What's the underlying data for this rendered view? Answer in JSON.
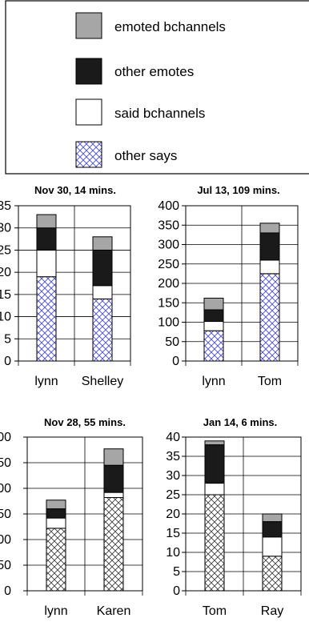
{
  "legend": {
    "entries": [
      {
        "label": "emoted bchannels",
        "color": "#a6a6a6",
        "pattern": "solid"
      },
      {
        "label": "other emotes",
        "color": "#1a1a1a",
        "pattern": "solid"
      },
      {
        "label": "said bchannels",
        "color": "#ffffff",
        "pattern": "solid"
      },
      {
        "label": "other says",
        "color": "#4a4ad8",
        "pattern": "crosshatch"
      }
    ]
  },
  "chart_data": [
    {
      "type": "bar",
      "stacked": true,
      "title": "Nov 30, 14 mins.",
      "categories": [
        "lynn",
        "Shelley"
      ],
      "yticks": [
        "35",
        "30",
        "25",
        "20",
        "15",
        "10",
        "5",
        "0"
      ],
      "ylim": [
        0,
        35
      ],
      "hatch_color": "#4a4ad8",
      "series": [
        {
          "name": "other says",
          "values": [
            19,
            14
          ]
        },
        {
          "name": "said bchannels",
          "values": [
            6,
            3
          ]
        },
        {
          "name": "other emotes",
          "values": [
            5,
            8
          ]
        },
        {
          "name": "emoted bchannels",
          "values": [
            3,
            3
          ]
        }
      ]
    },
    {
      "type": "bar",
      "stacked": true,
      "title": "Jul 13, 109 mins.",
      "categories": [
        "lynn",
        "Tom"
      ],
      "yticks": [
        "400",
        "350",
        "300",
        "250",
        "200",
        "150",
        "100",
        "50",
        "0"
      ],
      "ylim": [
        0,
        400
      ],
      "hatch_color": "#4a4ad8",
      "series": [
        {
          "name": "other says",
          "values": [
            78,
            225
          ]
        },
        {
          "name": "said bchannels",
          "values": [
            24,
            35
          ]
        },
        {
          "name": "other emotes",
          "values": [
            30,
            70
          ]
        },
        {
          "name": "emoted bchannels",
          "values": [
            30,
            25
          ]
        }
      ]
    },
    {
      "type": "bar",
      "stacked": true,
      "title": "Nov 28, 55 mins.",
      "categories": [
        "lynn",
        "Karen"
      ],
      "yticks": [
        "00",
        "50",
        "00",
        "50",
        "00",
        "50",
        "0"
      ],
      "ylim": [
        0,
        300
      ],
      "hatch_color": "#404040",
      "series": [
        {
          "name": "other says",
          "values": [
            122,
            182
          ]
        },
        {
          "name": "said bchannels",
          "values": [
            20,
            10
          ]
        },
        {
          "name": "other emotes",
          "values": [
            18,
            53
          ]
        },
        {
          "name": "emoted bchannels",
          "values": [
            17,
            32
          ]
        }
      ]
    },
    {
      "type": "bar",
      "stacked": true,
      "title": "Jan 14, 6 mins.",
      "categories": [
        "Tom",
        "Ray"
      ],
      "yticks": [
        "40",
        "35",
        "30",
        "25",
        "20",
        "15",
        "10",
        "5",
        "0"
      ],
      "ylim": [
        0,
        40
      ],
      "hatch_color": "#404040",
      "series": [
        {
          "name": "other says",
          "values": [
            25,
            9
          ]
        },
        {
          "name": "said bchannels",
          "values": [
            3,
            5
          ]
        },
        {
          "name": "other emotes",
          "values": [
            10,
            4
          ]
        },
        {
          "name": "emoted bchannels",
          "values": [
            1,
            2
          ]
        }
      ]
    }
  ]
}
